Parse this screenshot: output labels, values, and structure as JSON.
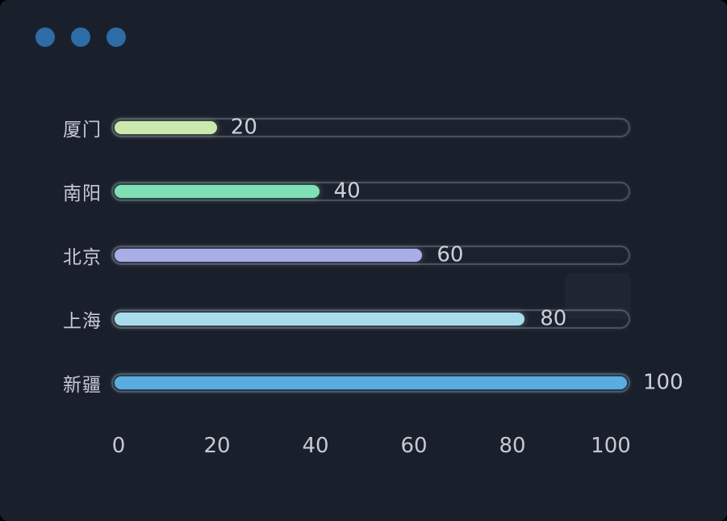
{
  "window_controls": {
    "count": 3,
    "color": "#2e6ca7"
  },
  "colors": {
    "panel_background": "#1a202b",
    "outer_background": "#000000",
    "text": "#c7cad6",
    "track_border": "rgba(173,181,199,0.32)"
  },
  "chart_data": {
    "type": "bar",
    "orientation": "horizontal",
    "title": "",
    "xlabel": "",
    "ylabel": "",
    "grid": false,
    "legend": false,
    "categories": [
      "厦门",
      "南阳",
      "北京",
      "上海",
      "新疆"
    ],
    "values": [
      20,
      40,
      60,
      80,
      100
    ],
    "value_labels": [
      "20",
      "40",
      "60",
      "80",
      "100"
    ],
    "bar_colors": [
      "#cbe9ad",
      "#7fe0b4",
      "#a9aee6",
      "#a9dcea",
      "#59ade0"
    ],
    "x_ticks": [
      "0",
      "20",
      "40",
      "60",
      "80",
      "100"
    ],
    "xlim": [
      0,
      100
    ]
  }
}
